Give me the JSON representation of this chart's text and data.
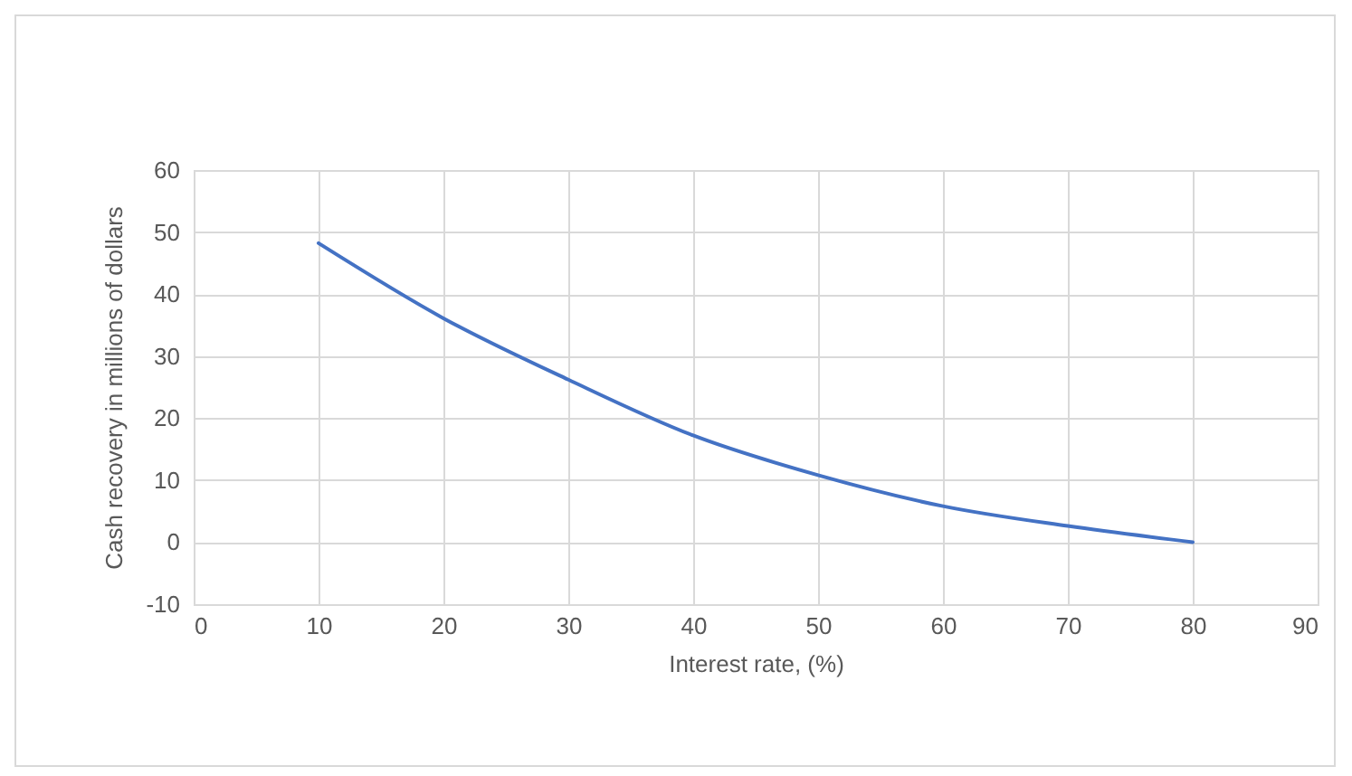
{
  "chart_data": {
    "type": "line",
    "xlabel": "Interest rate, (%)",
    "ylabel": "Cash recovery in millions of dollars",
    "x": [
      10,
      20,
      30,
      40,
      50,
      60,
      70,
      80
    ],
    "series": [
      {
        "color": "#4472c4",
        "values": [
          48.2,
          36.1,
          26.2,
          17.2,
          10.8,
          5.8,
          2.6,
          0
        ]
      }
    ],
    "xlim": [
      0,
      90
    ],
    "xticks": [
      0,
      10,
      20,
      30,
      40,
      50,
      60,
      70,
      80,
      90
    ],
    "ylim": [
      -10,
      60
    ],
    "yticks": [
      -10,
      0,
      10,
      20,
      30,
      40,
      50,
      60
    ],
    "grid": true,
    "marker": "none",
    "line_style": "solid"
  }
}
